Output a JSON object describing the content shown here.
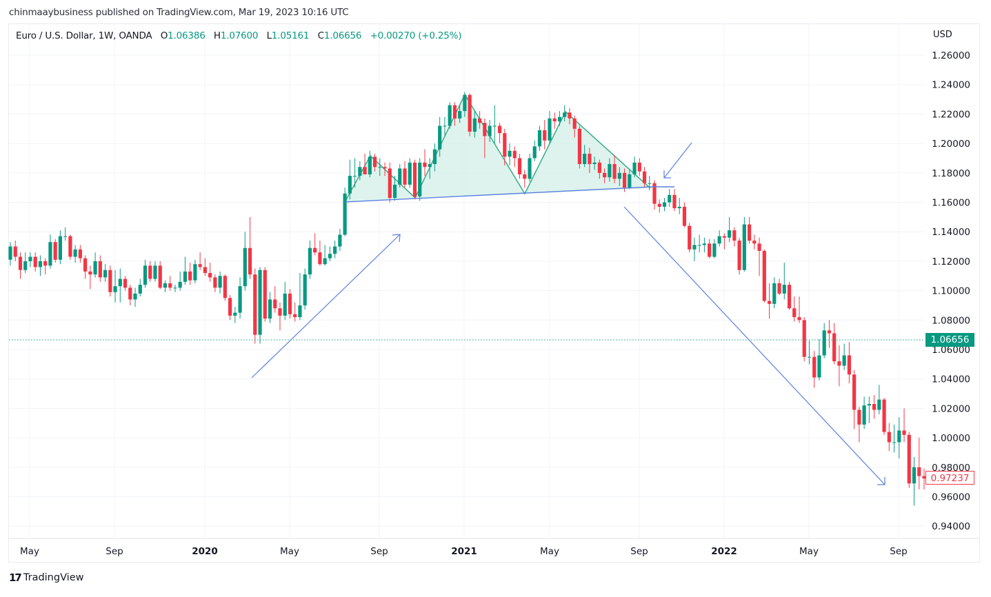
{
  "header": {
    "published_line": "chinmaaybusiness published on TradingView.com, Mar 19, 2023 10:16 UTC"
  },
  "legend": {
    "symbol": "Euro / U.S. Dollar, 1W, OANDA",
    "open_label": "O",
    "open": "1.06386",
    "high_label": "H",
    "high": "1.07600",
    "low_label": "L",
    "low": "1.05161",
    "close_label": "C",
    "close": "1.06656",
    "change": "+0.00270 (+0.25%)"
  },
  "price_axis": {
    "currency": "USD",
    "last_price_label": "1.06656",
    "hovered_price_label": "0.97237"
  },
  "brand": {
    "logo_text": "17",
    "name": "TradingView"
  },
  "colors": {
    "up": "#089981",
    "down": "#f23645",
    "drawing_blue": "#5b7fe0",
    "pattern_fill": "#d3efe7",
    "pattern_line": "#3fae8c"
  },
  "chart_data": {
    "type": "candlestick",
    "title": "Euro / U.S. Dollar, 1W, OANDA",
    "ylabel": "USD",
    "ylim": [
      0.93,
      1.27
    ],
    "grid": true,
    "y_ticks": [
      "1.26000",
      "1.24000",
      "1.22000",
      "1.20000",
      "1.18000",
      "1.16000",
      "1.14000",
      "1.12000",
      "1.10000",
      "1.08000",
      "1.06000",
      "1.04000",
      "1.02000",
      "1.00000",
      "0.98000",
      "0.96000",
      "0.94000"
    ],
    "x_ticks": [
      {
        "label": "May",
        "bold": false
      },
      {
        "label": "Sep",
        "bold": false
      },
      {
        "label": "2020",
        "bold": true
      },
      {
        "label": "May",
        "bold": false
      },
      {
        "label": "Sep",
        "bold": false
      },
      {
        "label": "2021",
        "bold": true
      },
      {
        "label": "May",
        "bold": false
      },
      {
        "label": "Sep",
        "bold": false
      },
      {
        "label": "2022",
        "bold": true
      },
      {
        "label": "May",
        "bold": false
      },
      {
        "label": "Sep",
        "bold": false
      }
    ],
    "reference_lines": [
      {
        "name": "last-price",
        "value": 1.06656,
        "style": "dotted",
        "color": "#089981"
      }
    ],
    "annotations": [
      "head-and-shoulders pattern (shaded)",
      "neckline",
      "up-trend arrow",
      "down-trend arrow",
      "breakdown arrow"
    ],
    "ohlc": [
      [
        1.121,
        1.133,
        1.117,
        1.13
      ],
      [
        1.13,
        1.134,
        1.12,
        1.123
      ],
      [
        1.123,
        1.126,
        1.108,
        1.114
      ],
      [
        1.114,
        1.126,
        1.112,
        1.12
      ],
      [
        1.12,
        1.126,
        1.116,
        1.123
      ],
      [
        1.123,
        1.126,
        1.113,
        1.116
      ],
      [
        1.116,
        1.124,
        1.11,
        1.12
      ],
      [
        1.12,
        1.122,
        1.111,
        1.117
      ],
      [
        1.117,
        1.138,
        1.115,
        1.133
      ],
      [
        1.133,
        1.135,
        1.119,
        1.121
      ],
      [
        1.121,
        1.141,
        1.118,
        1.137
      ],
      [
        1.137,
        1.143,
        1.134,
        1.137
      ],
      [
        1.137,
        1.138,
        1.121,
        1.123
      ],
      [
        1.123,
        1.131,
        1.119,
        1.128
      ],
      [
        1.128,
        1.131,
        1.119,
        1.122
      ],
      [
        1.122,
        1.124,
        1.108,
        1.113
      ],
      [
        1.113,
        1.117,
        1.101,
        1.111
      ],
      [
        1.111,
        1.126,
        1.109,
        1.12
      ],
      [
        1.12,
        1.124,
        1.106,
        1.109
      ],
      [
        1.109,
        1.118,
        1.106,
        1.114
      ],
      [
        1.114,
        1.117,
        1.096,
        1.099
      ],
      [
        1.099,
        1.114,
        1.092,
        1.103
      ],
      [
        1.103,
        1.115,
        1.092,
        1.108
      ],
      [
        1.108,
        1.11,
        1.1,
        1.102
      ],
      [
        1.102,
        1.104,
        1.09,
        1.094
      ],
      [
        1.094,
        1.102,
        1.089,
        1.098
      ],
      [
        1.098,
        1.108,
        1.096,
        1.104
      ],
      [
        1.104,
        1.121,
        1.102,
        1.117
      ],
      [
        1.117,
        1.12,
        1.106,
        1.108
      ],
      [
        1.108,
        1.12,
        1.106,
        1.117
      ],
      [
        1.117,
        1.12,
        1.101,
        1.102
      ],
      [
        1.102,
        1.107,
        1.099,
        1.105
      ],
      [
        1.105,
        1.11,
        1.1,
        1.102
      ],
      [
        1.102,
        1.104,
        1.099,
        1.102
      ],
      [
        1.102,
        1.113,
        1.1,
        1.106
      ],
      [
        1.106,
        1.123,
        1.104,
        1.113
      ],
      [
        1.113,
        1.119,
        1.104,
        1.107
      ],
      [
        1.107,
        1.121,
        1.105,
        1.118
      ],
      [
        1.118,
        1.126,
        1.114,
        1.116
      ],
      [
        1.116,
        1.122,
        1.11,
        1.112
      ],
      [
        1.112,
        1.119,
        1.106,
        1.109
      ],
      [
        1.109,
        1.111,
        1.099,
        1.102
      ],
      [
        1.102,
        1.113,
        1.098,
        1.11
      ],
      [
        1.11,
        1.111,
        1.093,
        1.095
      ],
      [
        1.095,
        1.097,
        1.08,
        1.083
      ],
      [
        1.083,
        1.089,
        1.078,
        1.085
      ],
      [
        1.085,
        1.109,
        1.081,
        1.103
      ],
      [
        1.103,
        1.14,
        1.1,
        1.129
      ],
      [
        1.129,
        1.15,
        1.108,
        1.111
      ],
      [
        1.111,
        1.115,
        1.064,
        1.07
      ],
      [
        1.07,
        1.116,
        1.064,
        1.114
      ],
      [
        1.114,
        1.116,
        1.079,
        1.081
      ],
      [
        1.081,
        1.099,
        1.078,
        1.094
      ],
      [
        1.094,
        1.103,
        1.085,
        1.088
      ],
      [
        1.088,
        1.092,
        1.073,
        1.083
      ],
      [
        1.083,
        1.106,
        1.08,
        1.098
      ],
      [
        1.098,
        1.101,
        1.081,
        1.084
      ],
      [
        1.084,
        1.092,
        1.079,
        1.082
      ],
      [
        1.082,
        1.112,
        1.08,
        1.09
      ],
      [
        1.09,
        1.115,
        1.087,
        1.111
      ],
      [
        1.111,
        1.134,
        1.108,
        1.129
      ],
      [
        1.129,
        1.139,
        1.124,
        1.126
      ],
      [
        1.126,
        1.134,
        1.117,
        1.118
      ],
      [
        1.118,
        1.131,
        1.117,
        1.122
      ],
      [
        1.122,
        1.13,
        1.12,
        1.125
      ],
      [
        1.125,
        1.134,
        1.122,
        1.13
      ],
      [
        1.13,
        1.142,
        1.127,
        1.138
      ],
      [
        1.138,
        1.17,
        1.137,
        1.166
      ],
      [
        1.166,
        1.189,
        1.162,
        1.178
      ],
      [
        1.178,
        1.19,
        1.17,
        1.178
      ],
      [
        1.178,
        1.188,
        1.175,
        1.184
      ],
      [
        1.184,
        1.193,
        1.18,
        1.179
      ],
      [
        1.179,
        1.195,
        1.177,
        1.191
      ],
      [
        1.191,
        1.193,
        1.181,
        1.184
      ],
      [
        1.184,
        1.19,
        1.178,
        1.184
      ],
      [
        1.184,
        1.187,
        1.178,
        1.183
      ],
      [
        1.183,
        1.187,
        1.16,
        1.163
      ],
      [
        1.163,
        1.178,
        1.161,
        1.172
      ],
      [
        1.172,
        1.186,
        1.17,
        1.183
      ],
      [
        1.183,
        1.188,
        1.17,
        1.172
      ],
      [
        1.172,
        1.19,
        1.17,
        1.187
      ],
      [
        1.187,
        1.189,
        1.162,
        1.164
      ],
      [
        1.164,
        1.19,
        1.161,
        1.187
      ],
      [
        1.187,
        1.196,
        1.178,
        1.184
      ],
      [
        1.184,
        1.19,
        1.176,
        1.186
      ],
      [
        1.186,
        1.2,
        1.181,
        1.196
      ],
      [
        1.196,
        1.218,
        1.191,
        1.212
      ],
      [
        1.212,
        1.218,
        1.205,
        1.212
      ],
      [
        1.212,
        1.228,
        1.21,
        1.226
      ],
      [
        1.226,
        1.228,
        1.212,
        1.217
      ],
      [
        1.217,
        1.226,
        1.214,
        1.222
      ],
      [
        1.222,
        1.235,
        1.218,
        1.233
      ],
      [
        1.233,
        1.234,
        1.205,
        1.208
      ],
      [
        1.208,
        1.222,
        1.204,
        1.217
      ],
      [
        1.217,
        1.222,
        1.21,
        1.214
      ],
      [
        1.214,
        1.217,
        1.19,
        1.205
      ],
      [
        1.205,
        1.216,
        1.201,
        1.212
      ],
      [
        1.212,
        1.226,
        1.2,
        1.212
      ],
      [
        1.212,
        1.214,
        1.2,
        1.207
      ],
      [
        1.207,
        1.21,
        1.185,
        1.191
      ],
      [
        1.191,
        1.2,
        1.185,
        1.195
      ],
      [
        1.195,
        1.198,
        1.184,
        1.19
      ],
      [
        1.19,
        1.193,
        1.176,
        1.179
      ],
      [
        1.179,
        1.182,
        1.17,
        1.176
      ],
      [
        1.176,
        1.193,
        1.174,
        1.19
      ],
      [
        1.19,
        1.202,
        1.188,
        1.198
      ],
      [
        1.198,
        1.212,
        1.195,
        1.209
      ],
      [
        1.209,
        1.216,
        1.196,
        1.202
      ],
      [
        1.202,
        1.222,
        1.2,
        1.217
      ],
      [
        1.217,
        1.221,
        1.21,
        1.215
      ],
      [
        1.215,
        1.222,
        1.212,
        1.218
      ],
      [
        1.218,
        1.226,
        1.215,
        1.221
      ],
      [
        1.221,
        1.224,
        1.213,
        1.217
      ],
      [
        1.217,
        1.219,
        1.204,
        1.21
      ],
      [
        1.21,
        1.212,
        1.183,
        1.186
      ],
      [
        1.186,
        1.199,
        1.184,
        1.193
      ],
      [
        1.193,
        1.197,
        1.18,
        1.186
      ],
      [
        1.186,
        1.191,
        1.182,
        1.187
      ],
      [
        1.187,
        1.189,
        1.176,
        1.18
      ],
      [
        1.18,
        1.183,
        1.173,
        1.177
      ],
      [
        1.177,
        1.19,
        1.174,
        1.186
      ],
      [
        1.186,
        1.192,
        1.173,
        1.176
      ],
      [
        1.176,
        1.184,
        1.171,
        1.18
      ],
      [
        1.18,
        1.183,
        1.167,
        1.17
      ],
      [
        1.17,
        1.182,
        1.169,
        1.179
      ],
      [
        1.179,
        1.191,
        1.177,
        1.187
      ],
      [
        1.187,
        1.19,
        1.178,
        1.181
      ],
      [
        1.181,
        1.184,
        1.17,
        1.173
      ],
      [
        1.173,
        1.178,
        1.168,
        1.173
      ],
      [
        1.173,
        1.175,
        1.155,
        1.159
      ],
      [
        1.159,
        1.162,
        1.153,
        1.157
      ],
      [
        1.157,
        1.163,
        1.154,
        1.16
      ],
      [
        1.16,
        1.169,
        1.157,
        1.165
      ],
      [
        1.165,
        1.169,
        1.154,
        1.156
      ],
      [
        1.156,
        1.163,
        1.152,
        1.157
      ],
      [
        1.157,
        1.16,
        1.143,
        1.144
      ],
      [
        1.144,
        1.146,
        1.126,
        1.128
      ],
      [
        1.128,
        1.136,
        1.12,
        1.131
      ],
      [
        1.131,
        1.138,
        1.126,
        1.131
      ],
      [
        1.131,
        1.136,
        1.126,
        1.132
      ],
      [
        1.132,
        1.135,
        1.122,
        1.123
      ],
      [
        1.123,
        1.135,
        1.122,
        1.132
      ],
      [
        1.132,
        1.141,
        1.13,
        1.137
      ],
      [
        1.137,
        1.139,
        1.128,
        1.136
      ],
      [
        1.136,
        1.15,
        1.133,
        1.141
      ],
      [
        1.141,
        1.143,
        1.13,
        1.134
      ],
      [
        1.134,
        1.136,
        1.111,
        1.114
      ],
      [
        1.114,
        1.15,
        1.113,
        1.145
      ],
      [
        1.145,
        1.15,
        1.132,
        1.134
      ],
      [
        1.134,
        1.138,
        1.128,
        1.132
      ],
      [
        1.132,
        1.136,
        1.11,
        1.127
      ],
      [
        1.127,
        1.128,
        1.092,
        1.093
      ],
      [
        1.093,
        1.105,
        1.081,
        1.091
      ],
      [
        1.091,
        1.109,
        1.088,
        1.105
      ],
      [
        1.105,
        1.108,
        1.097,
        1.098
      ],
      [
        1.098,
        1.119,
        1.094,
        1.104
      ],
      [
        1.104,
        1.106,
        1.087,
        1.088
      ],
      [
        1.088,
        1.096,
        1.079,
        1.082
      ],
      [
        1.082,
        1.096,
        1.078,
        1.08
      ],
      [
        1.08,
        1.082,
        1.052,
        1.055
      ],
      [
        1.055,
        1.066,
        1.05,
        1.055
      ],
      [
        1.055,
        1.059,
        1.034,
        1.041
      ],
      [
        1.041,
        1.067,
        1.039,
        1.056
      ],
      [
        1.056,
        1.078,
        1.054,
        1.073
      ],
      [
        1.073,
        1.08,
        1.061,
        1.071
      ],
      [
        1.071,
        1.078,
        1.05,
        1.052
      ],
      [
        1.052,
        1.063,
        1.035,
        1.049
      ],
      [
        1.049,
        1.064,
        1.046,
        1.056
      ],
      [
        1.056,
        1.065,
        1.037,
        1.043
      ],
      [
        1.043,
        1.046,
        1.006,
        1.019
      ],
      [
        1.019,
        1.021,
        0.997,
        1.009
      ],
      [
        1.009,
        1.028,
        1.006,
        1.022
      ],
      [
        1.022,
        1.028,
        1.01,
        1.023
      ],
      [
        1.023,
        1.029,
        1.013,
        1.019
      ],
      [
        1.019,
        1.036,
        1.016,
        1.026
      ],
      [
        1.026,
        1.027,
        1.002,
        1.004
      ],
      [
        1.004,
        1.01,
        0.991,
        0.997
      ],
      [
        0.997,
        1.009,
        0.99,
        0.997
      ],
      [
        0.997,
        1.014,
        0.986,
        1.005
      ],
      [
        1.005,
        1.02,
        0.997,
        1.002
      ],
      [
        1.002,
        1.004,
        0.966,
        0.969
      ],
      [
        0.969,
        0.987,
        0.954,
        0.98
      ],
      [
        0.98,
        1.0,
        0.965,
        0.974
      ],
      [
        0.974,
        0.979,
        0.965,
        0.97237
      ]
    ]
  }
}
